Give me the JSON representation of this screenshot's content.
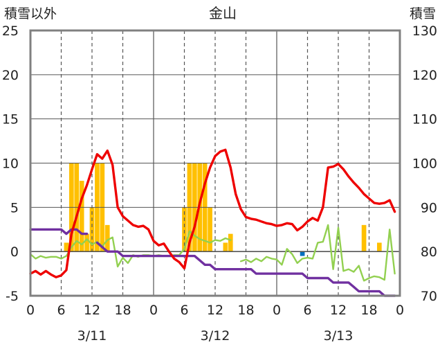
{
  "chart_data": {
    "type": "bar",
    "title": "金山",
    "left_axis_label": "積雪以外",
    "right_axis_label": "積雪",
    "left_ylim": [
      -5,
      25
    ],
    "left_yticks": [
      -5,
      0,
      5,
      10,
      15,
      20,
      25
    ],
    "right_ylim": [
      70,
      130
    ],
    "right_yticks": [
      70,
      80,
      90,
      100,
      110,
      120,
      130
    ],
    "xlim": [
      0,
      72
    ],
    "x_tick_positions": [
      0,
      6,
      12,
      18,
      24,
      30,
      36,
      42,
      48,
      54,
      60,
      66,
      72
    ],
    "x_tick_labels": [
      "0",
      "6",
      "12",
      "18",
      "0",
      "6",
      "12",
      "18",
      "0",
      "6",
      "12",
      "18",
      "0"
    ],
    "date_labels": [
      {
        "x": 12,
        "label": "3/11"
      },
      {
        "x": 36,
        "label": "3/12"
      },
      {
        "x": 60,
        "label": "3/13"
      }
    ],
    "day_boundaries": [
      24,
      48
    ],
    "dashed_hours": [
      6,
      12,
      18,
      30,
      36,
      42,
      54,
      60,
      66
    ],
    "grid": "horizontal",
    "colors": {
      "temperature": "#ee0000",
      "wind": "#92d050",
      "snow_depth": "#7030a0",
      "precipitation": "#ffc000",
      "special": "#0070c0",
      "grid": "#555555",
      "frame": "#808080"
    },
    "series": [
      {
        "key": "temperature",
        "axis": "left",
        "x": [
          0,
          1,
          2,
          3,
          4,
          5,
          6,
          7,
          8,
          9,
          10,
          11,
          12,
          13,
          14,
          15,
          16,
          17,
          18,
          19,
          20,
          21,
          22,
          23,
          24,
          25,
          26,
          27,
          28,
          29,
          30,
          31,
          32,
          33,
          34,
          35,
          36,
          37,
          38,
          39,
          40,
          41,
          42,
          43,
          44,
          45,
          46,
          47,
          48,
          49,
          50,
          51,
          52,
          53,
          54,
          55,
          56,
          57,
          58,
          59,
          60,
          61,
          62,
          63,
          64,
          65,
          66,
          67,
          68,
          69,
          70,
          71
        ],
        "values": [
          -2.5,
          -2.2,
          -2.6,
          -2.2,
          -2.6,
          -2.9,
          -2.7,
          -2.1,
          2.0,
          4.0,
          6.0,
          7.5,
          9.3,
          11.0,
          10.5,
          11.4,
          9.8,
          5.0,
          4.0,
          3.5,
          3.0,
          2.8,
          2.9,
          2.5,
          1.2,
          0.7,
          0.9,
          0.0,
          -0.8,
          -1.2,
          -1.9,
          1.0,
          2.8,
          5.5,
          7.7,
          9.5,
          10.8,
          11.3,
          11.5,
          9.5,
          6.5,
          4.8,
          3.9,
          3.7,
          3.6,
          3.4,
          3.2,
          3.1,
          2.9,
          3.0,
          3.2,
          3.1,
          2.4,
          2.8,
          3.4,
          3.8,
          3.5,
          5.0,
          9.5,
          9.6,
          9.9,
          9.3,
          8.5,
          7.8,
          7.2,
          6.5,
          6.0,
          5.5,
          5.4,
          5.5,
          5.8,
          4.5
        ]
      },
      {
        "key": "wind",
        "axis": "left",
        "segments": [
          {
            "x": [
              0,
              1,
              2,
              3,
              4,
              5,
              6,
              7,
              8,
              9,
              10,
              11,
              12,
              13,
              14,
              15,
              16,
              17,
              18,
              19,
              20,
              21,
              22,
              23,
              24,
              25,
              26,
              27,
              28,
              29,
              30,
              31,
              32,
              33,
              34,
              35,
              36,
              37,
              38,
              39
            ],
            "values": [
              -0.3,
              -0.8,
              -0.5,
              -0.7,
              -0.6,
              -0.6,
              -0.8,
              -0.5,
              0.5,
              1.2,
              0.8,
              1.4,
              0.8,
              1.1,
              0.6,
              1.3,
              1.6,
              -1.7,
              -0.7,
              -1.3,
              -0.4,
              -0.6,
              -0.4,
              -0.4,
              -0.5,
              -0.4,
              -0.5,
              -0.5,
              -0.4,
              -0.4,
              0.3,
              2.3,
              1.8,
              1.4,
              1.2,
              1.0,
              1.3,
              1.2,
              1.5,
              1.3
            ]
          },
          {
            "x": [
              41,
              42,
              43,
              44,
              45,
              46,
              47,
              48,
              49,
              50,
              51,
              52,
              53,
              54,
              55,
              56,
              57,
              58,
              59,
              60,
              61,
              62,
              63,
              64,
              65,
              66,
              67,
              68,
              69,
              70,
              71
            ],
            "values": [
              -1.1,
              -0.9,
              -1.2,
              -0.8,
              -1.1,
              -0.6,
              -0.8,
              -0.9,
              -1.5,
              0.3,
              -0.3,
              -1.3,
              -0.8,
              -0.7,
              -0.8,
              1.0,
              1.1,
              3.0,
              -2.0,
              2.7,
              -2.2,
              -2.0,
              -2.3,
              -1.6,
              -3.3,
              -3.0,
              -2.8,
              -2.9,
              -3.2,
              2.5,
              -2.5
            ]
          }
        ]
      },
      {
        "key": "snow_depth",
        "axis": "right",
        "segments": [
          {
            "x": [
              0,
              1,
              2,
              3,
              4,
              5,
              6,
              7,
              8,
              9,
              10,
              11
            ],
            "values": [
              85,
              85,
              85,
              85,
              85,
              85,
              85,
              84,
              85,
              85,
              84,
              84
            ]
          },
          {
            "x": [
              13,
              14,
              15,
              16,
              17,
              18,
              19,
              20,
              21,
              22,
              23,
              24,
              25,
              26,
              27,
              28,
              29,
              30,
              31,
              32,
              33,
              34,
              35,
              36,
              37,
              38,
              39,
              40,
              41,
              42,
              43,
              44,
              45,
              46,
              47,
              48,
              49,
              50,
              51,
              52,
              53,
              54,
              55,
              56,
              57,
              58,
              59,
              60,
              61,
              62,
              63,
              64,
              65,
              66,
              67,
              68,
              69,
              70,
              71
            ],
            "values": [
              82,
              81,
              80,
              80,
              80,
              79,
              79,
              79,
              79,
              79,
              79,
              79,
              79,
              79,
              79,
              79,
              79,
              79,
              79,
              79,
              78,
              77,
              77,
              76,
              76,
              76,
              76,
              76,
              76,
              76,
              76,
              75,
              75,
              75,
              75,
              75,
              75,
              75,
              75,
              75,
              75,
              74,
              74,
              74,
              74,
              74,
              73,
              73,
              73,
              73,
              72,
              71,
              71,
              71,
              71,
              71,
              70,
              70,
              70
            ]
          }
        ]
      },
      {
        "key": "precipitation",
        "axis": "left",
        "type": "bar",
        "x": [
          7,
          8,
          9,
          10,
          11,
          12,
          13,
          14,
          15,
          30,
          31,
          32,
          33,
          34,
          35,
          36,
          37,
          38,
          39,
          40,
          41,
          42,
          43,
          44,
          45,
          46,
          47,
          48,
          49,
          50,
          51,
          52,
          53,
          54,
          55,
          56,
          57,
          58,
          59,
          60,
          61,
          62,
          63,
          64,
          65,
          66,
          67,
          68,
          69,
          70,
          71
        ],
        "values": [
          1.0,
          10.0,
          10.0,
          8.0,
          2.0,
          5.0,
          10.0,
          10.0,
          3.0,
          5.0,
          10.0,
          10.0,
          10.0,
          10.0,
          5.0,
          0,
          0,
          1.0,
          2.0,
          0,
          0,
          0,
          0,
          0,
          0,
          0,
          0,
          0,
          0,
          0,
          0,
          0,
          0,
          0,
          0,
          0,
          0,
          0,
          0,
          0,
          0,
          0,
          0,
          0,
          3.0,
          0,
          0,
          1.0,
          0,
          0,
          0
        ]
      },
      {
        "key": "special",
        "axis": "left",
        "type": "bar",
        "x": [
          53
        ],
        "values": [
          -0.5
        ]
      }
    ]
  }
}
